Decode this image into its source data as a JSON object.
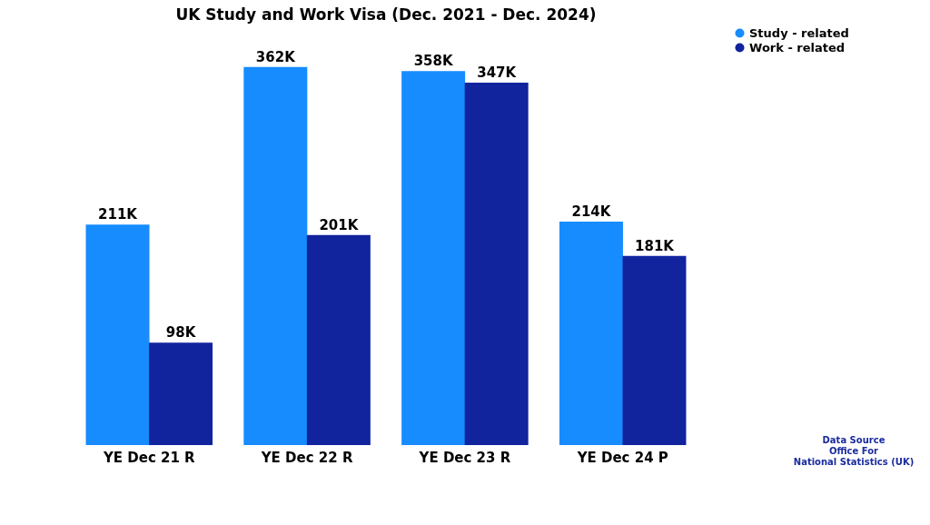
{
  "chart_data": {
    "type": "bar",
    "title": "UK Study and Work Visa (Dec. 2021 - Dec. 2024)",
    "categories": [
      "YE Dec 21 R",
      "YE Dec 22 R",
      "YE Dec 23 R",
      "YE Dec 24 P"
    ],
    "series": [
      {
        "name": "Study - related",
        "color": "#168cff",
        "values": [
          211,
          362,
          358,
          214
        ],
        "value_labels": [
          "211K",
          "362K",
          "358K",
          "214K"
        ]
      },
      {
        "name": "Work - related",
        "color": "#12239e",
        "values": [
          98,
          201,
          347,
          181
        ],
        "value_labels": [
          "98K",
          "201K",
          "347K",
          "181K"
        ]
      }
    ],
    "annotations": [
      "Data Source\nOffice For\nNational Statistics (UK)"
    ],
    "legend": "right",
    "grid": false
  }
}
